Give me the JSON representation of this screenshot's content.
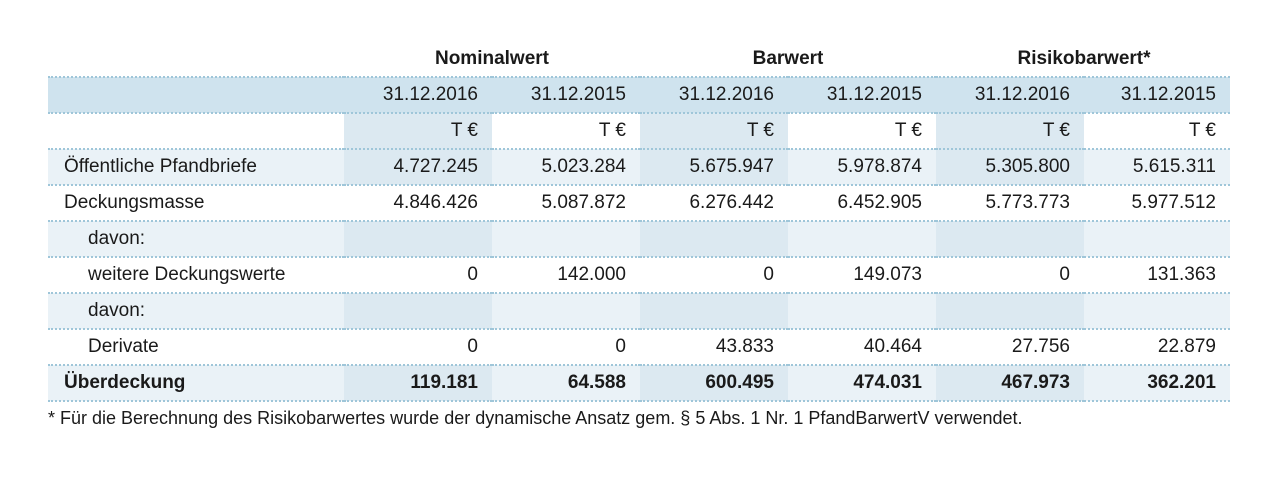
{
  "groups": {
    "nominal": "Nominalwert",
    "barwert": "Barwert",
    "risiko": "Risikobarwert*"
  },
  "dates": [
    "31.12.2016",
    "31.12.2015",
    "31.12.2016",
    "31.12.2015",
    "31.12.2016",
    "31.12.2015"
  ],
  "units": [
    "T €",
    "T €",
    "T €",
    "T €",
    "T €",
    "T €"
  ],
  "rows": [
    {
      "label": "Öffentliche Pfandbriefe",
      "values": [
        "4.727.245",
        "5.023.284",
        "5.675.947",
        "5.978.874",
        "5.305.800",
        "5.615.311"
      ]
    },
    {
      "label": "Deckungsmasse",
      "values": [
        "4.846.426",
        "5.087.872",
        "6.276.442",
        "6.452.905",
        "5.773.773",
        "5.977.512"
      ]
    },
    {
      "label": "davon:",
      "values": [
        "",
        "",
        "",
        "",
        "",
        ""
      ]
    },
    {
      "label": "weitere Deckungswerte",
      "values": [
        "0",
        "142.000",
        "0",
        "149.073",
        "0",
        "131.363"
      ]
    },
    {
      "label": "davon:",
      "values": [
        "",
        "",
        "",
        "",
        "",
        ""
      ]
    },
    {
      "label": "Derivate",
      "values": [
        "0",
        "0",
        "43.833",
        "40.464",
        "27.756",
        "22.879"
      ]
    },
    {
      "label": "Überdeckung",
      "values": [
        "119.181",
        "64.588",
        "600.495",
        "474.031",
        "467.973",
        "362.201"
      ]
    }
  ],
  "footnote": "* Für die Berechnung des Risikobarwertes wurde der dynamische Ansatz gem. § 5 Abs. 1 Nr. 1 PfandBarwertV verwendet."
}
